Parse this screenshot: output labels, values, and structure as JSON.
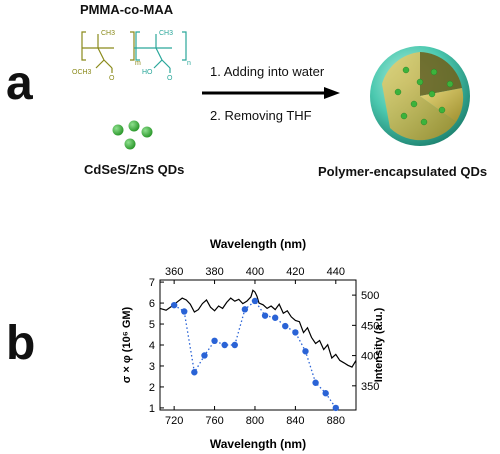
{
  "panel_a": {
    "letter": "a",
    "polymer_name": "PMMA-co-MAA",
    "structure": {
      "ch3_left": "CH3",
      "ch3_right": "CH3",
      "sub_m": "m",
      "sub_n": "n",
      "left_group": "OCH3",
      "right_group": "HO",
      "o_left": "O",
      "o_right": "O"
    },
    "qd_label": "CdSeS/ZnS QDs",
    "step1": "1. Adding into water",
    "step2": "2. Removing THF",
    "product_label": "Polymer-encapsulated QDs",
    "colors": {
      "polymer": "#8a8a1a",
      "polymer_right": "#2aa79a",
      "qd": "#3cb33c",
      "shell": "#3fc0a8",
      "core": "#c8b446"
    }
  },
  "panel_b": {
    "letter": "b"
  },
  "chart_data": {
    "type": "line+scatter",
    "top_axis": {
      "label": "Wavelength (nm)",
      "ticks": [
        360,
        380,
        400,
        420,
        440
      ],
      "range": [
        353,
        450
      ]
    },
    "bottom_axis": {
      "label": "Wavelength (nm)",
      "ticks": [
        720,
        760,
        800,
        840,
        880
      ],
      "range": [
        706,
        900
      ]
    },
    "left_axis": {
      "label": "σ × φ (10⁶ GM)",
      "ticks": [
        1,
        2,
        3,
        4,
        5,
        6,
        7
      ],
      "range": [
        0.9,
        7.1
      ]
    },
    "right_axis": {
      "label": "Intensity (a.u.)",
      "ticks": [
        350,
        400,
        450,
        500
      ],
      "range": [
        310,
        525
      ]
    },
    "series": [
      {
        "kind": "line",
        "axis": "top-right",
        "color": "#000000",
        "x": [
          353,
          356,
          359,
          362,
          364,
          366,
          368,
          370,
          372,
          374,
          376,
          378,
          380,
          382,
          384,
          386,
          388,
          390,
          392,
          394,
          396,
          398,
          399,
          400,
          401,
          402,
          404,
          406,
          408,
          410,
          412,
          414,
          416,
          418,
          420,
          422,
          424,
          426,
          428,
          430,
          432,
          434,
          436,
          438,
          440,
          442,
          444,
          446,
          448,
          450
        ],
        "y": [
          478,
          475,
          482,
          490,
          495,
          492,
          485,
          472,
          476,
          486,
          492,
          480,
          474,
          482,
          478,
          488,
          495,
          490,
          493,
          486,
          490,
          497,
          508,
          505,
          498,
          487,
          484,
          478,
          482,
          476,
          485,
          470,
          474,
          464,
          458,
          456,
          438,
          446,
          430,
          420,
          425,
          410,
          418,
          396,
          402,
          392,
          388,
          384,
          381,
          392
        ]
      },
      {
        "kind": "scatter-dotted",
        "axis": "bottom-left",
        "color": "#2a63d6",
        "x": [
          720,
          730,
          740,
          750,
          760,
          770,
          780,
          790,
          800,
          810,
          820,
          830,
          840,
          850,
          860,
          870,
          880
        ],
        "y": [
          5.9,
          5.6,
          2.7,
          3.5,
          4.2,
          4.0,
          4.0,
          5.7,
          6.1,
          5.4,
          5.3,
          4.9,
          4.6,
          3.7,
          2.2,
          1.7,
          1.0
        ]
      }
    ]
  }
}
